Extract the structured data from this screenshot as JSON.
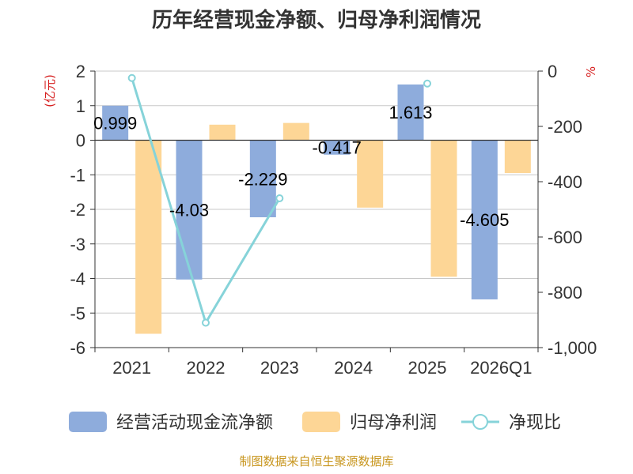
{
  "chart_data": {
    "type": "bar",
    "title": "历年经营现金净额、归母净利润情况",
    "categories": [
      "2021",
      "2022",
      "2023",
      "2024",
      "2025",
      "2026Q1"
    ],
    "left_axis": {
      "unit": "(亿元)",
      "ylim": [
        -6,
        2
      ],
      "ticks": [
        "2",
        "1",
        "0",
        "-1",
        "-2",
        "-3",
        "-4",
        "-5",
        "-6"
      ]
    },
    "right_axis": {
      "unit": "%",
      "ylim": [
        -1000,
        0
      ],
      "ticks": [
        "0",
        "-200",
        "-400",
        "-600",
        "-800",
        "-1,000"
      ]
    },
    "series": [
      {
        "name": "经营活动现金流净额",
        "type": "bar",
        "axis": "left",
        "color": "#8eacdc",
        "values": [
          0.999,
          -4.03,
          -2.229,
          -0.417,
          1.613,
          -4.605
        ],
        "labels": [
          "0.999",
          "-4.03",
          "-2.229",
          "-0.417",
          "1.613",
          "-4.605"
        ]
      },
      {
        "name": "归母净利润",
        "type": "bar",
        "axis": "left",
        "color": "#fdd696",
        "values": [
          -5.6,
          0.45,
          0.5,
          -1.95,
          -3.95,
          -0.95
        ]
      },
      {
        "name": "净现比",
        "type": "line",
        "axis": "right",
        "color": "#86d3d9",
        "values": [
          -25,
          -910,
          -460,
          null,
          -45,
          null
        ]
      }
    ],
    "source": "制图数据来自恒生聚源数据库"
  }
}
